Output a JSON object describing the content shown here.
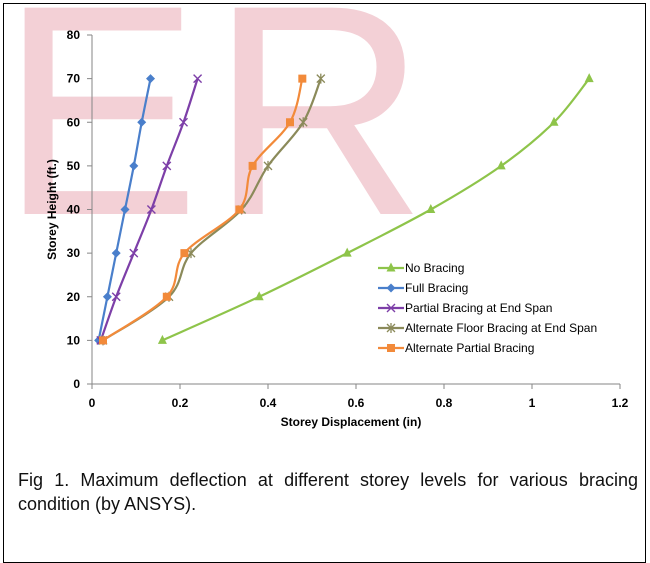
{
  "watermark": {
    "text": "ER"
  },
  "caption": {
    "text": "Fig 1. Maximum deflection at different storey levels for various bracing condition (by ANSYS)."
  },
  "colors": {
    "watermark": "#f3d0d6",
    "axis": "#868686"
  },
  "chart_data": {
    "type": "line",
    "title": "",
    "xlabel": "Storey Displacement (in)",
    "ylabel": "Storey Height (ft.)",
    "xlim": [
      0,
      1.2
    ],
    "ylim": [
      0,
      80
    ],
    "xticks": [
      0,
      0.2,
      0.4,
      0.6,
      0.8,
      1,
      1.2
    ],
    "xtick_labels": [
      "0",
      "0.2",
      "0.4",
      "0.6",
      "0.8",
      "1",
      "1.2"
    ],
    "yticks": [
      0,
      10,
      20,
      30,
      40,
      50,
      60,
      70,
      80
    ],
    "ytick_labels": [
      "0",
      "10",
      "20",
      "30",
      "40",
      "50",
      "60",
      "70",
      "80"
    ],
    "grid": false,
    "legend_position": "right",
    "series": [
      {
        "name": "No Bracing",
        "color": "#8ec44a",
        "marker": "triangle",
        "x": [
          0.16,
          0.38,
          0.58,
          0.77,
          0.93,
          1.05,
          1.13
        ],
        "y": [
          10,
          20,
          30,
          40,
          50,
          60,
          70
        ]
      },
      {
        "name": "Full Bracing",
        "color": "#4a7fcb",
        "marker": "diamond",
        "x": [
          0.015,
          0.035,
          0.055,
          0.075,
          0.095,
          0.113,
          0.133
        ],
        "y": [
          10,
          20,
          30,
          40,
          50,
          60,
          70
        ]
      },
      {
        "name": "Partial Bracing at End Span",
        "color": "#7d3fa8",
        "marker": "x",
        "x": [
          0.02,
          0.055,
          0.095,
          0.135,
          0.17,
          0.208,
          0.24
        ],
        "y": [
          10,
          20,
          30,
          40,
          50,
          60,
          70
        ]
      },
      {
        "name": "Alternate Floor Bracing at End Span",
        "color": "#8b8a5a",
        "marker": "star",
        "x": [
          0.025,
          0.175,
          0.225,
          0.34,
          0.4,
          0.48,
          0.52
        ],
        "y": [
          10,
          20,
          30,
          40,
          50,
          60,
          70
        ]
      },
      {
        "name": "Alternate Partial Bracing",
        "color": "#f28a3a",
        "marker": "square",
        "x": [
          0.025,
          0.17,
          0.21,
          0.335,
          0.365,
          0.45,
          0.478
        ],
        "y": [
          10,
          20,
          30,
          40,
          50,
          60,
          70
        ]
      }
    ]
  }
}
